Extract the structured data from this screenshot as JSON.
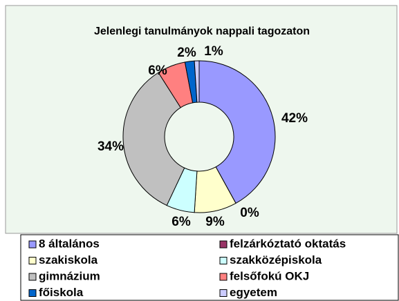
{
  "chart_data": {
    "type": "pie",
    "title": "Jelenlegi tanulmányok nappali tagozaton",
    "categories": [
      "8 általános",
      "felzárkóztató oktatás",
      "szakiskola",
      "szakközépiskola",
      "gimnázium",
      "felsőfokú OKJ",
      "főiskola",
      "egyetem"
    ],
    "values": [
      42,
      0,
      9,
      6,
      34,
      6,
      2,
      1
    ],
    "value_labels": [
      "42%",
      "0%",
      "9%",
      "6%",
      "34%",
      "6%",
      "2%",
      "1%"
    ],
    "colors": [
      "#9999ff",
      "#993366",
      "#ffffcc",
      "#ccffff",
      "#c0c0c0",
      "#ff8080",
      "#0066cc",
      "#ccccff"
    ],
    "donut": true
  }
}
